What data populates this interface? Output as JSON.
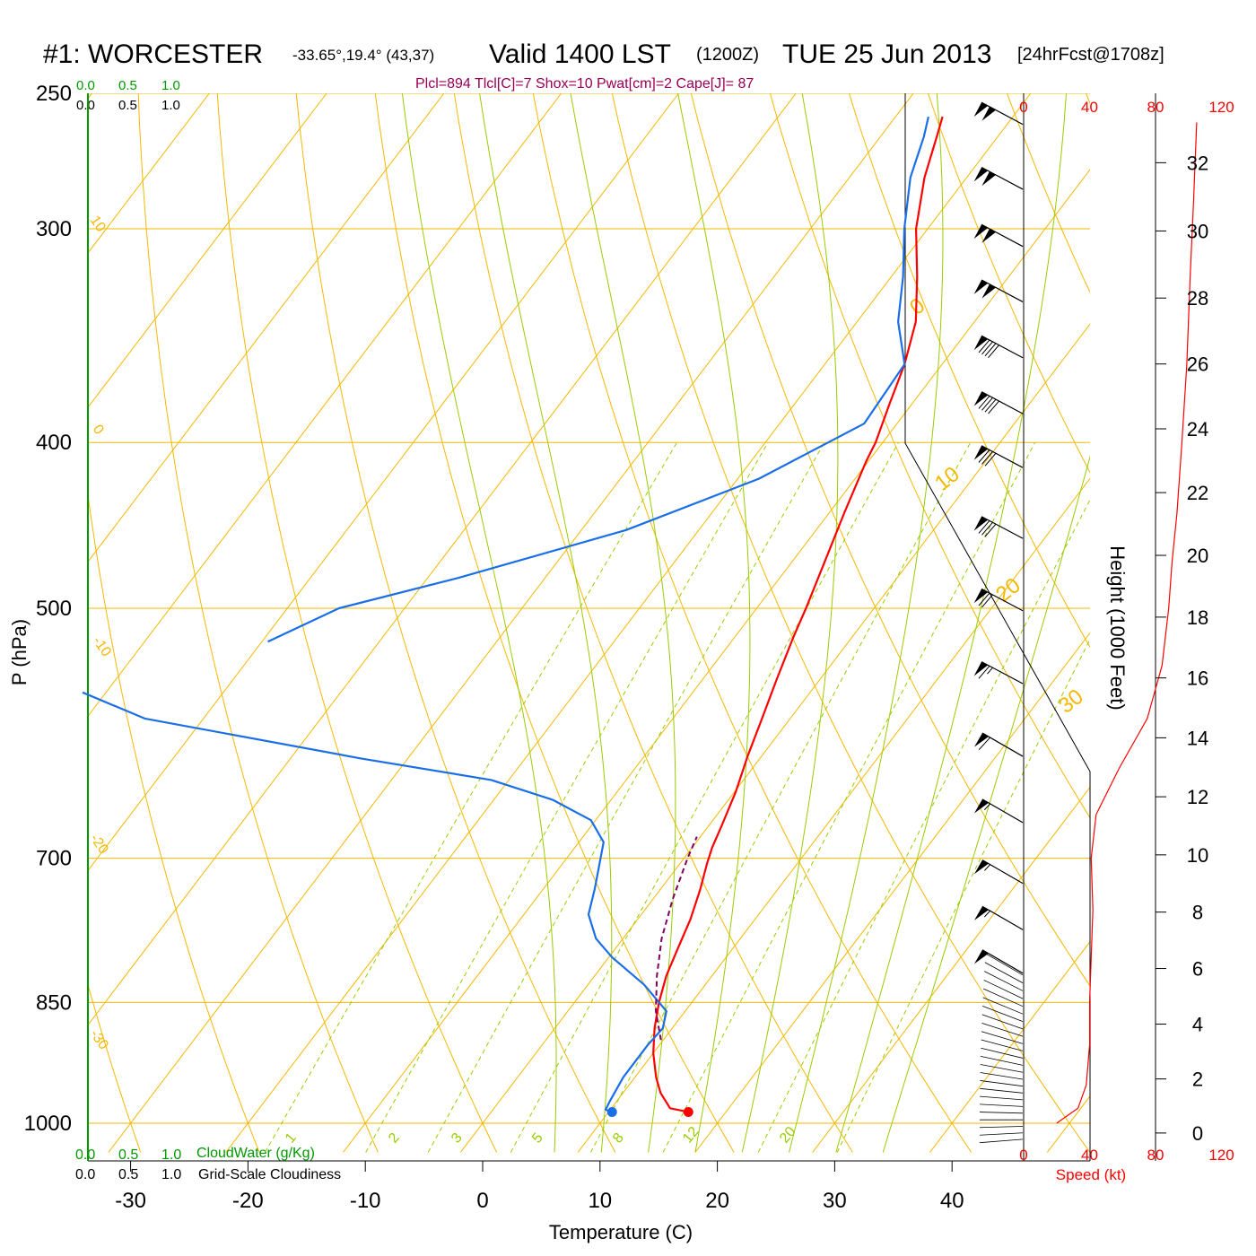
{
  "header": {
    "station": "#1: WORCESTER",
    "coords": "-33.65°,19.4° (43,37)",
    "valid": "Valid 1400 LST",
    "utc": "(1200Z)",
    "date": "TUE 25 Jun 2013",
    "forecast": "[24hrFcst@1708z]",
    "params": "Plcl=894 Tlcl[C]=7 Shox=10 Pwat[cm]=2 Cape[J]= 87"
  },
  "colors": {
    "isobar": "#f5b800",
    "isotherm": "#f5b800",
    "dry_adiabat": "#f5b800",
    "moist_adiabat": "#99cc00",
    "mixing_ratio": "#99cc00",
    "temperature": "#ff0000",
    "dewpoint": "#1a6fe8",
    "parcel": "#800060",
    "cloud_axis": "#009900",
    "params": "#990055",
    "speed": "#ff0000"
  },
  "cloud_scale": {
    "top_green": [
      "0.0",
      "0.5",
      "1.0"
    ],
    "top_black": [
      "0.0",
      "0.5",
      "1.0"
    ],
    "bottom_green": [
      "0.0",
      "0.5",
      "1.0"
    ],
    "bottom_black": [
      "0.0",
      "0.5",
      "1.0"
    ],
    "cloudwater_label": "CloudWater (g/Kg)",
    "cloudiness_label": "Grid-Scale Cloudiness"
  },
  "chart_data": {
    "type": "line",
    "title": "Skew-T log-P sounding",
    "xlabel": "Temperature (C)",
    "ylabel": "P (hPa)",
    "xlim": [
      -34,
      36
    ],
    "ylim": [
      1030,
      250
    ],
    "pressure_ticks": [
      250,
      300,
      400,
      500,
      700,
      850,
      1000
    ],
    "temperature_ticks": [
      -30,
      -20,
      -10,
      0,
      10,
      20,
      30,
      40
    ],
    "dry_adiabat_labels": [
      "10",
      "0",
      "-10",
      "-20",
      "-30"
    ],
    "isotherm_labels": [
      "0",
      "10",
      "20",
      "30"
    ],
    "mixing_ratio_labels": [
      "1",
      "2",
      "3",
      "5",
      "8",
      "12",
      "20"
    ],
    "series": [
      {
        "name": "Temperature",
        "points": [
          [
            985,
            16.8
          ],
          [
            980,
            15
          ],
          [
            960,
            13.2
          ],
          [
            940,
            11.8
          ],
          [
            910,
            10
          ],
          [
            880,
            8.5
          ],
          [
            850,
            7.2
          ],
          [
            820,
            6.1
          ],
          [
            790,
            5.3
          ],
          [
            760,
            4.5
          ],
          [
            730,
            3.4
          ],
          [
            705,
            2.3
          ],
          [
            690,
            1.7
          ],
          [
            670,
            1.1
          ],
          [
            640,
            0.1
          ],
          [
            610,
            -1.2
          ],
          [
            580,
            -2.4
          ],
          [
            550,
            -3.7
          ],
          [
            520,
            -5
          ],
          [
            500,
            -5.8
          ],
          [
            470,
            -7.2
          ],
          [
            440,
            -8.7
          ],
          [
            410,
            -10.2
          ],
          [
            400,
            -10.6
          ],
          [
            380,
            -11.9
          ],
          [
            360,
            -13.2
          ],
          [
            340,
            -15
          ],
          [
            320,
            -17.8
          ],
          [
            300,
            -21
          ],
          [
            280,
            -23.6
          ],
          [
            265,
            -25.2
          ],
          [
            258,
            -26
          ]
        ]
      },
      {
        "name": "Dewpoint",
        "points": [
          [
            985,
            10.3
          ],
          [
            982,
            9.6
          ],
          [
            970,
            9.4
          ],
          [
            940,
            9
          ],
          [
            900,
            9
          ],
          [
            880,
            9.2
          ],
          [
            860,
            8.4
          ],
          [
            830,
            4.8
          ],
          [
            800,
            0.3
          ],
          [
            780,
            -2.3
          ],
          [
            755,
            -4.5
          ],
          [
            730,
            -5.6
          ],
          [
            710,
            -6.6
          ],
          [
            685,
            -7.9
          ],
          [
            665,
            -10.4
          ],
          [
            647,
            -15
          ],
          [
            630,
            -21.5
          ],
          [
            612,
            -34
          ],
          [
            580,
            -55
          ],
          [
            560,
            -62
          ]
        ]
      },
      {
        "name": "Dewpoint upper",
        "points": [
          [
            523,
            -49.5
          ],
          [
            500,
            -45.6
          ],
          [
            480,
            -37.4
          ],
          [
            450,
            -26.2
          ],
          [
            420,
            -18.2
          ],
          [
            390,
            -12.8
          ],
          [
            360,
            -13.2
          ],
          [
            340,
            -16.5
          ],
          [
            320,
            -19
          ],
          [
            300,
            -22
          ],
          [
            280,
            -24.8
          ],
          [
            265,
            -26.3
          ],
          [
            258,
            -27.2
          ]
        ]
      },
      {
        "name": "Parcel",
        "points": [
          [
            894,
            9.8
          ],
          [
            860,
            7.5
          ],
          [
            820,
            5.3
          ],
          [
            780,
            3.3
          ],
          [
            740,
            1.7
          ],
          [
            700,
            0.3
          ],
          [
            680,
            -0.3
          ]
        ]
      }
    ],
    "surface_temperature_marker": [
      985,
      16.8
    ],
    "surface_dewpoint_marker": [
      985,
      10.3
    ]
  },
  "wind_panel": {
    "speed_ticks": [
      "0",
      "40",
      "80",
      "120"
    ],
    "speed_label": "Speed (kt)",
    "speed_profile_kt": [
      [
        1000,
        20
      ],
      [
        980,
        33
      ],
      [
        950,
        38
      ],
      [
        900,
        40
      ],
      [
        850,
        40
      ],
      [
        800,
        41
      ],
      [
        750,
        42
      ],
      [
        700,
        41
      ],
      [
        660,
        44
      ],
      [
        620,
        58
      ],
      [
        580,
        75
      ],
      [
        540,
        84
      ],
      [
        500,
        88
      ],
      [
        470,
        90
      ],
      [
        440,
        93
      ],
      [
        400,
        96
      ],
      [
        360,
        99
      ],
      [
        320,
        101
      ],
      [
        290,
        103
      ],
      [
        260,
        105
      ]
    ],
    "barbs": [
      {
        "p": 252,
        "speed_kt": 100,
        "dir_deg": 298
      },
      {
        "p": 275,
        "speed_kt": 100,
        "dir_deg": 298
      },
      {
        "p": 297,
        "speed_kt": 100,
        "dir_deg": 298
      },
      {
        "p": 320,
        "speed_kt": 100,
        "dir_deg": 298
      },
      {
        "p": 345,
        "speed_kt": 90,
        "dir_deg": 298
      },
      {
        "p": 372,
        "speed_kt": 90,
        "dir_deg": 298
      },
      {
        "p": 400,
        "speed_kt": 80,
        "dir_deg": 298
      },
      {
        "p": 440,
        "speed_kt": 80,
        "dir_deg": 298
      },
      {
        "p": 485,
        "speed_kt": 70,
        "dir_deg": 298
      },
      {
        "p": 535,
        "speed_kt": 65,
        "dir_deg": 298
      },
      {
        "p": 590,
        "speed_kt": 60,
        "dir_deg": 300
      },
      {
        "p": 645,
        "speed_kt": 55,
        "dir_deg": 300
      },
      {
        "p": 700,
        "speed_kt": 55,
        "dir_deg": 300
      },
      {
        "p": 745,
        "speed_kt": 55,
        "dir_deg": 300
      },
      {
        "p": 790,
        "speed_kt": 50,
        "dir_deg": 300
      }
    ],
    "height_label": "Height (1000 Feet)",
    "height_ticks": [
      "0",
      "2",
      "4",
      "6",
      "8",
      "10",
      "12",
      "14",
      "16",
      "18",
      "20",
      "22",
      "24",
      "26",
      "28",
      "30",
      "32"
    ]
  }
}
